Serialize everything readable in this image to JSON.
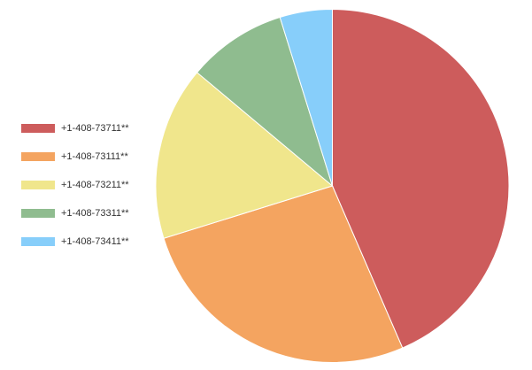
{
  "chart_data": {
    "type": "pie",
    "categories": [
      "+1-408-73711**",
      "+1-408-73111**",
      "+1-408-73211**",
      "+1-408-73311**",
      "+1-408-73411**"
    ],
    "values": [
      43.5,
      26.7,
      15.9,
      9.1,
      4.8
    ],
    "colors": [
      "#cd5c5c",
      "#f4a460",
      "#f0e68c",
      "#8fbc8f",
      "#87cefa"
    ],
    "legend": "left"
  }
}
